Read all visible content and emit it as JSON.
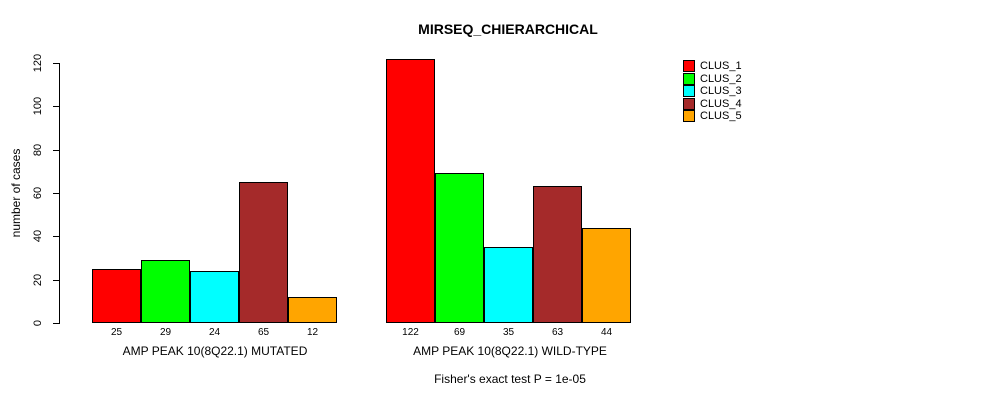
{
  "figure": {
    "background_color": "#FFFFFF",
    "text_color": "#000000"
  },
  "chart_data": {
    "type": "bar",
    "title": "MIRSEQ_CHIERARCHICAL",
    "xlabel": "",
    "ylabel": "number of cases",
    "ylim": [
      0,
      120
    ],
    "yticks": [
      0,
      20,
      40,
      60,
      80,
      100,
      120
    ],
    "grid": false,
    "legend_position": "right-outside-top",
    "categories": [
      "AMP PEAK 10(8Q22.1) MUTATED",
      "AMP PEAK 10(8Q22.1) WILD-TYPE"
    ],
    "series": [
      {
        "name": "CLUS_1",
        "color": "#FF0000",
        "values": [
          25,
          122
        ]
      },
      {
        "name": "CLUS_2",
        "color": "#00FF00",
        "values": [
          29,
          69
        ]
      },
      {
        "name": "CLUS_3",
        "color": "#00FFFF",
        "values": [
          24,
          35
        ]
      },
      {
        "name": "CLUS_4",
        "color": "#A52A2A",
        "values": [
          65,
          63
        ]
      },
      {
        "name": "CLUS_5",
        "color": "#FFA500",
        "values": [
          12,
          44
        ]
      }
    ],
    "show_bar_values": true,
    "bar_border_color": "#000000",
    "caption": "Fisher's exact test P = 1e-05"
  }
}
